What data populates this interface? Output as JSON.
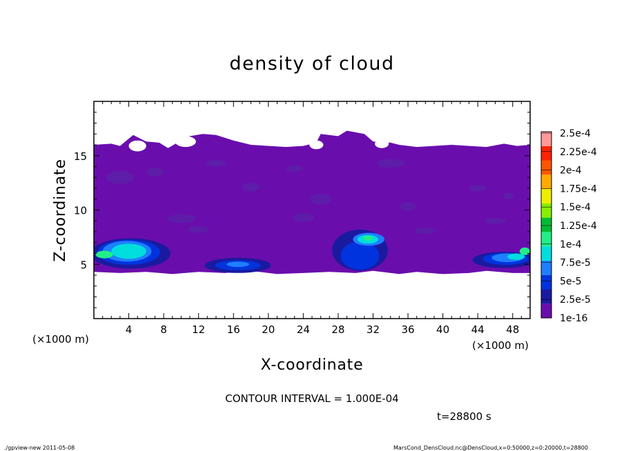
{
  "chart_data": {
    "type": "heatmap",
    "title": "density of cloud",
    "xlabel": "X-coordinate",
    "ylabel": "Z-coordinate",
    "x_unit_left": "(×1000 m)",
    "x_unit_right": "(×1000 m)",
    "z_unit": "(×1000 m)",
    "xlim": [
      0,
      50
    ],
    "ylim": [
      0,
      20
    ],
    "xticks": [
      4,
      8,
      12,
      16,
      20,
      24,
      28,
      32,
      36,
      40,
      44,
      48
    ],
    "xtick_labels": [
      "4",
      "8",
      "12",
      "16",
      "20",
      "24",
      "28",
      "32",
      "36",
      "40",
      "44",
      "48"
    ],
    "yticks": [
      5,
      10,
      15
    ],
    "ytick_labels": [
      "5",
      "10",
      "15"
    ],
    "contour_interval_text": "CONTOUR INTERVAL = 1.000E-04",
    "time_text": "t=28800 s",
    "colorbar": {
      "labels": [
        "1e-16",
        "2.5e-5",
        "5e-5",
        "7.5e-5",
        "1e-4",
        "1.25e-4",
        "1.5e-4",
        "1.75e-4",
        "2e-4",
        "2.25e-4",
        "2.5e-4"
      ],
      "colors": [
        "#6a0dad",
        "#1a1aa0",
        "#0033dd",
        "#1f7fff",
        "#00dddd",
        "#22ee88",
        "#00bb33",
        "#88ee00",
        "#eeee00",
        "#ffaa00",
        "#ff5500",
        "#ff2200",
        "#ff9999"
      ]
    },
    "regions": [
      {
        "name": "cloud layer",
        "x": [
          0,
          50
        ],
        "z": [
          4.2,
          16.0
        ],
        "value": "1e-16 to 2.5e-5"
      },
      {
        "name": "low cloud (west)",
        "x": [
          0,
          9.5
        ],
        "z": [
          4.8,
          7.6
        ],
        "value_max": "~1e-4"
      },
      {
        "name": "low cloud (center-left)",
        "x": [
          13,
          20.5
        ],
        "z": [
          4.5,
          5.8
        ],
        "value_max": "~5e-5"
      },
      {
        "name": "low cloud (center)",
        "x": [
          28,
          34.5
        ],
        "z": [
          4.5,
          8.5
        ],
        "value_max": "~1e-4"
      },
      {
        "name": "low cloud (east)",
        "x": [
          43,
          50
        ],
        "z": [
          4.7,
          6.7
        ],
        "value_max": "~1e-4"
      }
    ]
  },
  "footer": {
    "left": "./gpview-new   2011-05-08",
    "right": "MarsCond_DensCloud.nc@DensCloud,x=0:50000,z=0:20000,t=28800"
  }
}
